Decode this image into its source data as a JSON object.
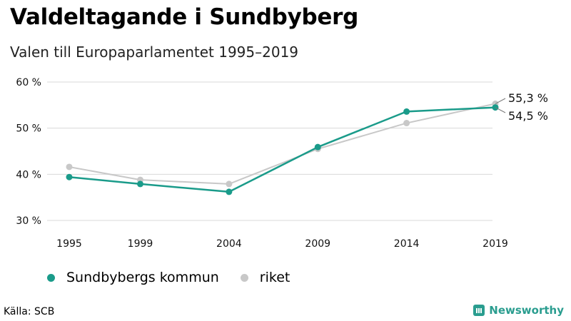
{
  "title": "Valdeltagande i Sundbyberg",
  "subtitle": "Valen till Europaparlamentet 1995–2019",
  "source": "Källa: SCB",
  "brand": "Newsworthy",
  "colors": {
    "sundbyberg": "#1a9b8a",
    "riket": "#c8c8c8",
    "grid": "#d9d9d9",
    "brand": "#2a9d8f"
  },
  "chart_data": {
    "type": "line",
    "x": [
      1995,
      1999,
      2004,
      2009,
      2014,
      2019
    ],
    "y_ticks": [
      "30 %",
      "40 %",
      "50 %",
      "60 %"
    ],
    "ylim": [
      30,
      60
    ],
    "series": [
      {
        "name": "riket",
        "values": [
          41.6,
          38.8,
          37.9,
          45.5,
          51.1,
          55.3
        ]
      },
      {
        "name": "Sundbybergs kommun",
        "values": [
          39.4,
          37.9,
          36.2,
          45.9,
          53.6,
          54.5
        ]
      }
    ],
    "end_labels": {
      "riket": "55,3 %",
      "sundbyberg": "54,5 %"
    }
  },
  "legend": [
    {
      "label": "Sundbybergs kommun",
      "color": "#1a9b8a"
    },
    {
      "label": "riket",
      "color": "#c8c8c8"
    }
  ]
}
